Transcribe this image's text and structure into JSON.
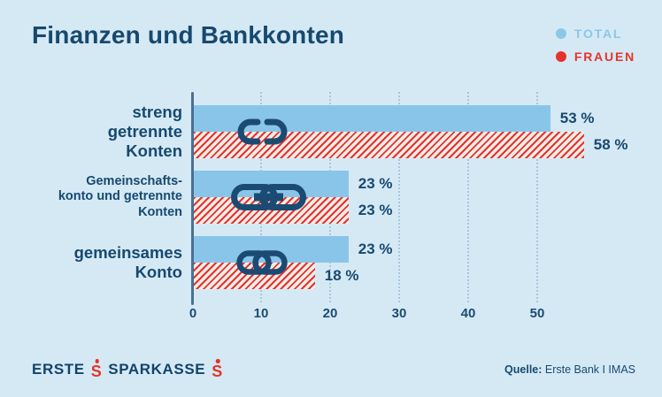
{
  "header": {
    "title": "Finanzen und Bankkonten"
  },
  "legend": {
    "total": {
      "label": "TOTAL",
      "color": "#8CC7E9"
    },
    "frauen": {
      "label": "FRAUEN",
      "color": "#E6332A"
    }
  },
  "colors": {
    "background": "#D5E9F5",
    "bar_total": "#89C5E8",
    "accent_red": "#E6332A",
    "text_navy": "#17496F",
    "axis": "#4A7090"
  },
  "chart_data": {
    "type": "bar",
    "orientation": "horizontal",
    "title": "Finanzen und Bankkonten",
    "categories": [
      "streng getrennte Konten",
      "Gemeinschaftskonto und getrennte Konten",
      "gemeinsames Konto"
    ],
    "series": [
      {
        "name": "TOTAL",
        "color": "#89C5E8",
        "style": "solid",
        "values": [
          53,
          23,
          23
        ]
      },
      {
        "name": "FRAUEN",
        "color": "#E6332A",
        "style": "diagonal-hatch",
        "values": [
          58,
          23,
          18
        ]
      }
    ],
    "value_suffix": " %",
    "xlim": [
      0,
      55
    ],
    "x_ticks": [
      0,
      10,
      20,
      30,
      40,
      50
    ],
    "grid": "vertical-dotted",
    "ticks": [
      "0",
      "10",
      "20",
      "30",
      "40",
      "50"
    ],
    "rows": [
      {
        "label_lines": [
          "streng",
          "getrennte",
          "Konten"
        ],
        "icon": "broken-chain-icon",
        "total": 53,
        "frauen": 58,
        "total_label": "53 %",
        "frauen_label": "58 %"
      },
      {
        "label_lines": [
          "Gemeinschafts-",
          "konto und getrennte",
          "Konten"
        ],
        "icon": "chain-links-icon",
        "total": 23,
        "frauen": 23,
        "total_label": "23 %",
        "frauen_label": "23 %"
      },
      {
        "label_lines": [
          "gemeinsames",
          "Konto"
        ],
        "icon": "interlocked-rings-icon",
        "total": 23,
        "frauen": 18,
        "total_label": "23 %",
        "frauen_label": "18 %"
      }
    ]
  },
  "footer": {
    "logo": {
      "erste": "ERSTE",
      "sparkasse": "SPARKASSE",
      "symbol": "S"
    },
    "source": {
      "prefix": "Quelle:",
      "text": " Erste Bank I IMAS"
    }
  }
}
